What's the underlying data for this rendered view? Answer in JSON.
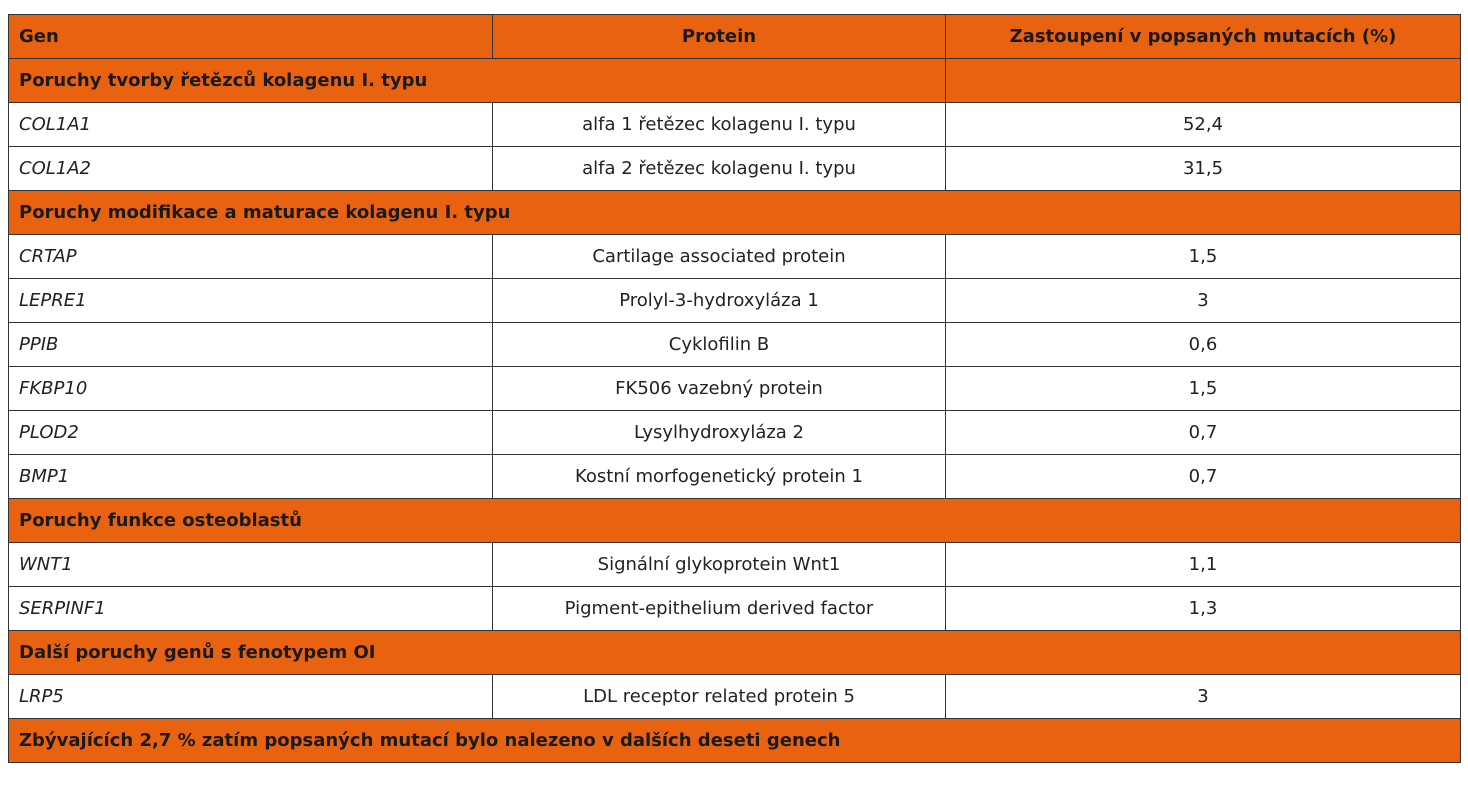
{
  "table": {
    "header": [
      "Gen",
      "Protein",
      "Zastoupení v popsaných mutacích (%)"
    ],
    "sections": [
      {
        "title": "Poruchy tvorby řetězců kolagenu I. typu",
        "rows": [
          [
            "COL1A1",
            "alfa 1 řetězec kolagenu I. typu",
            "52,4"
          ],
          [
            "COL1A2",
            "alfa 2 řetězec kolagenu I. typu",
            "31,5"
          ]
        ]
      },
      {
        "title": "Poruchy modifikace a maturace kolagenu I. typu",
        "rows": [
          [
            "CRTAP",
            "Cartilage associated protein",
            "1,5"
          ],
          [
            "LEPRE1",
            "Prolyl-3-hydroxyláza 1",
            "3"
          ],
          [
            "PPIB",
            "Cyklofilin B",
            "0,6"
          ],
          [
            "FKBP10",
            "FK506 vazebný protein",
            "1,5"
          ],
          [
            "PLOD2",
            "Lysylhydroxyláza 2",
            "0,7"
          ],
          [
            "BMP1",
            "Kostní morfogenetický protein 1",
            "0,7"
          ]
        ]
      },
      {
        "title": "Poruchy funkce osteoblastů",
        "rows": [
          [
            "WNT1",
            "Signální glykoprotein Wnt1",
            "1,1"
          ],
          [
            "SERPINF1",
            "Pigment-epithelium derived factor",
            "1,3"
          ]
        ]
      },
      {
        "title": "Další poruchy genů s fenotypem OI",
        "rows": [
          [
            "LRP5",
            "LDL receptor related protein 5",
            "3"
          ]
        ]
      }
    ],
    "footer": "Zbývajících 2,7 % zatím popsaných mutací bylo nalezeno v dalších deseti genech"
  }
}
